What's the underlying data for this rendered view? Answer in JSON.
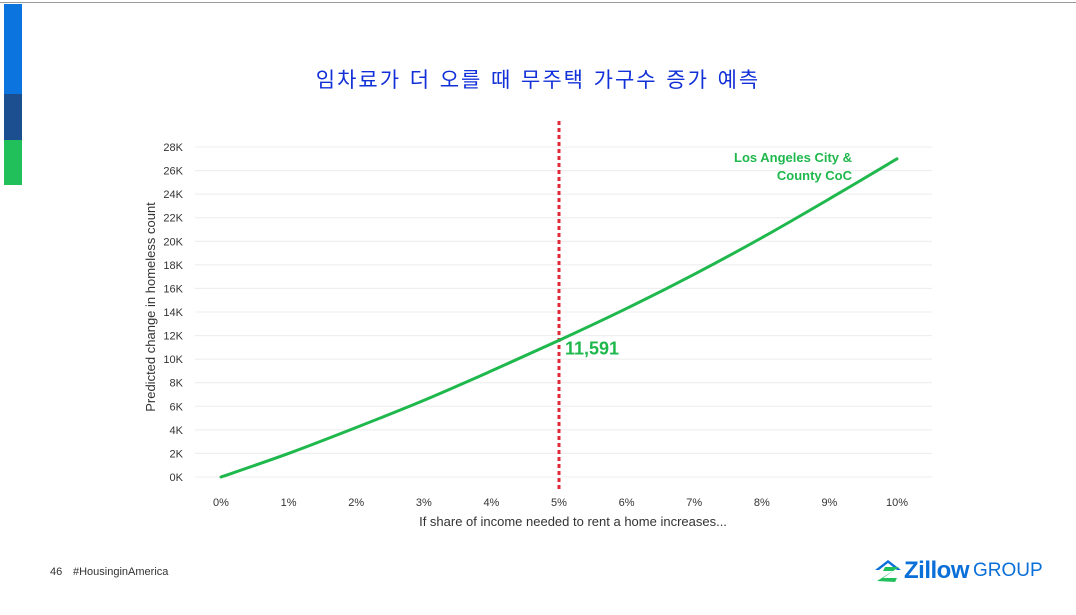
{
  "slide": {
    "title": "임차료가 더 오를 때 무주택 가구수 증가 예측",
    "page_number": "46",
    "hashtag": "#HousinginAmerica",
    "logo_word": "Zillow",
    "logo_suffix": "GROUP"
  },
  "colors": {
    "series": "#1fb84d",
    "marker_line": "#e02a3a",
    "title": "#1230d8",
    "logo": "#0a6fd8"
  },
  "chart_data": {
    "type": "line",
    "title": "",
    "xlabel": "If share of income needed to rent a home increases...",
    "ylabel": "Predicted change in homeless count",
    "x_ticks": [
      "0%",
      "1%",
      "2%",
      "3%",
      "4%",
      "5%",
      "6%",
      "7%",
      "8%",
      "9%",
      "10%"
    ],
    "y_ticks": [
      "0K",
      "2K",
      "4K",
      "6K",
      "8K",
      "10K",
      "12K",
      "14K",
      "16K",
      "18K",
      "20K",
      "22K",
      "24K",
      "26K",
      "28K"
    ],
    "xlim": [
      0,
      10
    ],
    "ylim": [
      0,
      28000
    ],
    "grid": true,
    "series": [
      {
        "name": "Los Angeles City & County CoC",
        "x": [
          0,
          1,
          2,
          3,
          4,
          5,
          6,
          7,
          8,
          9,
          10
        ],
        "values": [
          0,
          2000,
          4200,
          6500,
          9000,
          11591,
          14300,
          17200,
          20300,
          23600,
          27000
        ]
      }
    ],
    "vertical_marker": {
      "x": 5
    },
    "annotations": [
      {
        "text": "11,591",
        "x": 5,
        "y": 11591
      }
    ]
  }
}
